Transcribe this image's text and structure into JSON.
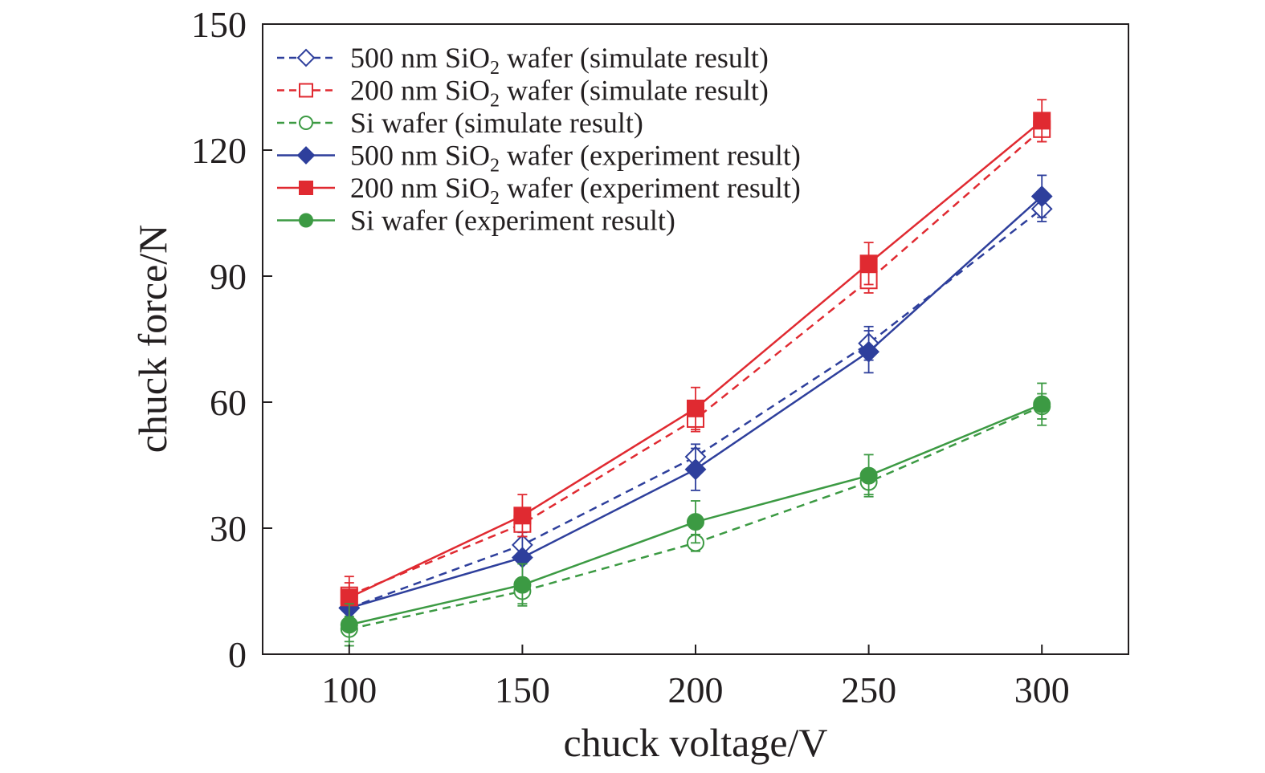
{
  "chart_data": {
    "type": "line",
    "xlabel": "chuck voltage/V",
    "ylabel": "chuck force/N",
    "xlim": [
      75,
      325
    ],
    "ylim": [
      0,
      150
    ],
    "x": [
      100,
      150,
      200,
      250,
      300
    ],
    "xticks": [
      "100",
      "150",
      "200",
      "250",
      "300"
    ],
    "yticks": [
      "0",
      "30",
      "60",
      "90",
      "120",
      "150"
    ],
    "grid": false,
    "legend_position": "top-left",
    "series": [
      {
        "name": "500 nm SiO₂ wafer (simulate result)",
        "label_main": "500 nm SiO",
        "label_sub": "2",
        "label_rest": " wafer (simulate result)",
        "color": "#2e3f9c",
        "style": "dashed",
        "marker": "open-diamond",
        "values": [
          11,
          26,
          47,
          74,
          106
        ],
        "errors": [
          3,
          3,
          3,
          4,
          3
        ]
      },
      {
        "name": "200 nm SiO₂ wafer (simulate result)",
        "label_main": "200 nm SiO",
        "label_sub": "2",
        "label_rest": " wafer (simulate result)",
        "color": "#e02a31",
        "style": "dashed",
        "marker": "open-square",
        "values": [
          14,
          31,
          56,
          89,
          125
        ],
        "errors": [
          3,
          3,
          3,
          3,
          3
        ]
      },
      {
        "name": "Si wafer (simulate result)",
        "label_main": "Si wafer (simulate result)",
        "label_sub": "",
        "label_rest": "",
        "color": "#3c9a43",
        "style": "dashed",
        "marker": "open-circle",
        "values": [
          6,
          15,
          26.5,
          41,
          59
        ],
        "errors": [
          3,
          3,
          2,
          3,
          3
        ]
      },
      {
        "name": "500 nm SiO₂ wafer (experiment result)",
        "label_main": "500 nm SiO",
        "label_sub": "2",
        "label_rest": " wafer (experiment result)",
        "color": "#2e3f9c",
        "style": "solid",
        "marker": "filled-diamond",
        "values": [
          11,
          23,
          44,
          72,
          109
        ],
        "errors": [
          4,
          5,
          5,
          5,
          5
        ]
      },
      {
        "name": "200 nm SiO₂ wafer (experiment result)",
        "label_main": "200 nm SiO",
        "label_sub": "2",
        "label_rest": " wafer (experiment result)",
        "color": "#e02a31",
        "style": "solid",
        "marker": "filled-square",
        "values": [
          13.5,
          33,
          58.5,
          93,
          127
        ],
        "errors": [
          5,
          5,
          5,
          5,
          5
        ]
      },
      {
        "name": "Si wafer (experiment result)",
        "label_main": "Si wafer (experiment result)",
        "label_sub": "",
        "label_rest": "",
        "color": "#3c9a43",
        "style": "solid",
        "marker": "filled-circle",
        "values": [
          7,
          16.5,
          31.5,
          42.5,
          59.5
        ],
        "errors": [
          5,
          5,
          5,
          5,
          5
        ]
      }
    ]
  }
}
